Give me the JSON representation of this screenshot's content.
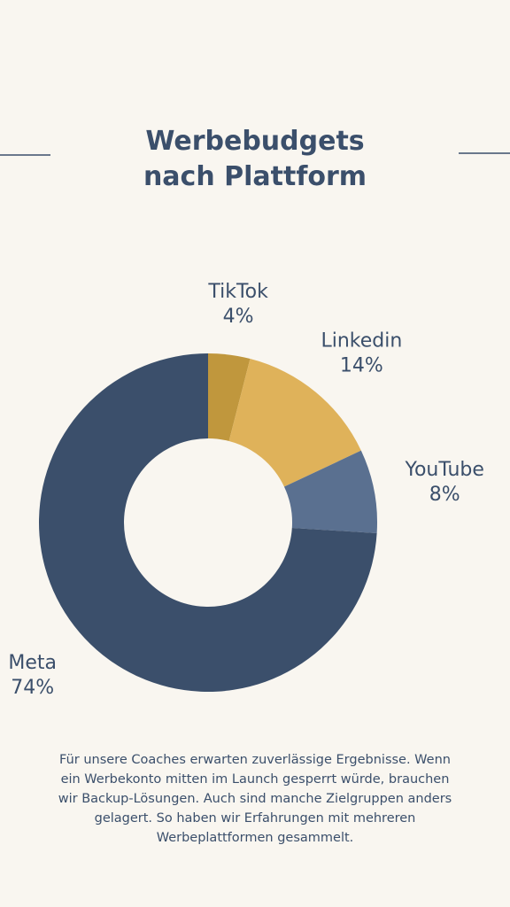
{
  "chart_data": {
    "type": "donut",
    "title": "Werbebudgets nach Plattform",
    "categories": [
      "TikTok",
      "Linkedin",
      "YouTube",
      "Meta"
    ],
    "values": [
      4,
      14,
      8,
      74
    ],
    "value_labels": [
      "4%",
      "14%",
      "8%",
      "74%"
    ],
    "colors": [
      "#c0973d",
      "#dfb25a",
      "#5a7090",
      "#3b4f6b"
    ]
  },
  "description": "Für unsere Coaches erwarten zuverlässige Ergebnisse. Wenn ein Werbekonto mitten im Launch gesperrt würde, brauchen wir Backup-Lösungen. Auch sind manche Zielgruppen anders gelagert. So haben wir Erfahrungen mit mehreren Werbeplattformen gesammelt."
}
